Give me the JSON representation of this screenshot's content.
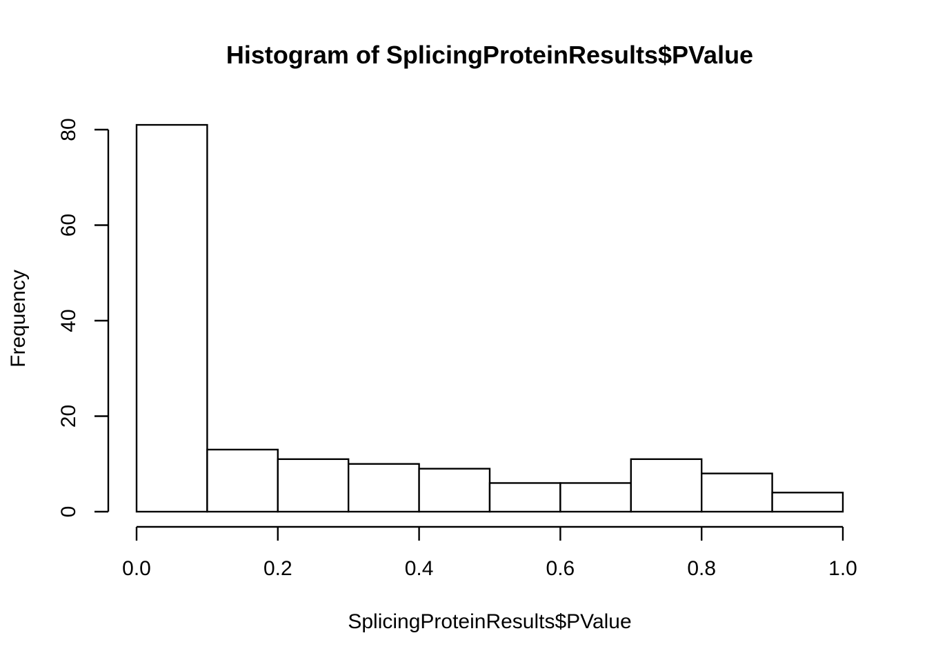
{
  "chart_data": {
    "type": "bar",
    "title": "Histogram of SplicingProteinResults$PValue",
    "xlabel": "SplicingProteinResults$PValue",
    "ylabel": "Frequency",
    "bins": [
      {
        "x0": 0.0,
        "x1": 0.1,
        "count": 81
      },
      {
        "x0": 0.1,
        "x1": 0.2,
        "count": 13
      },
      {
        "x0": 0.2,
        "x1": 0.3,
        "count": 11
      },
      {
        "x0": 0.3,
        "x1": 0.4,
        "count": 10
      },
      {
        "x0": 0.4,
        "x1": 0.5,
        "count": 9
      },
      {
        "x0": 0.5,
        "x1": 0.6,
        "count": 6
      },
      {
        "x0": 0.6,
        "x1": 0.7,
        "count": 6
      },
      {
        "x0": 0.7,
        "x1": 0.8,
        "count": 11
      },
      {
        "x0": 0.8,
        "x1": 0.9,
        "count": 8
      },
      {
        "x0": 0.9,
        "x1": 1.0,
        "count": 4
      }
    ],
    "xlim": [
      0.0,
      1.0
    ],
    "ylim": [
      0,
      80
    ],
    "x_ticks": [
      0.0,
      0.2,
      0.4,
      0.6,
      0.8,
      1.0
    ],
    "x_tick_labels": [
      "0.0",
      "0.2",
      "0.4",
      "0.6",
      "0.8",
      "1.0"
    ],
    "y_ticks": [
      0,
      20,
      40,
      60,
      80
    ],
    "y_tick_labels": [
      "0",
      "20",
      "40",
      "60",
      "80"
    ],
    "grid": false,
    "legend": "none",
    "bar_fill": "#ffffff",
    "bar_stroke": "#000000"
  }
}
